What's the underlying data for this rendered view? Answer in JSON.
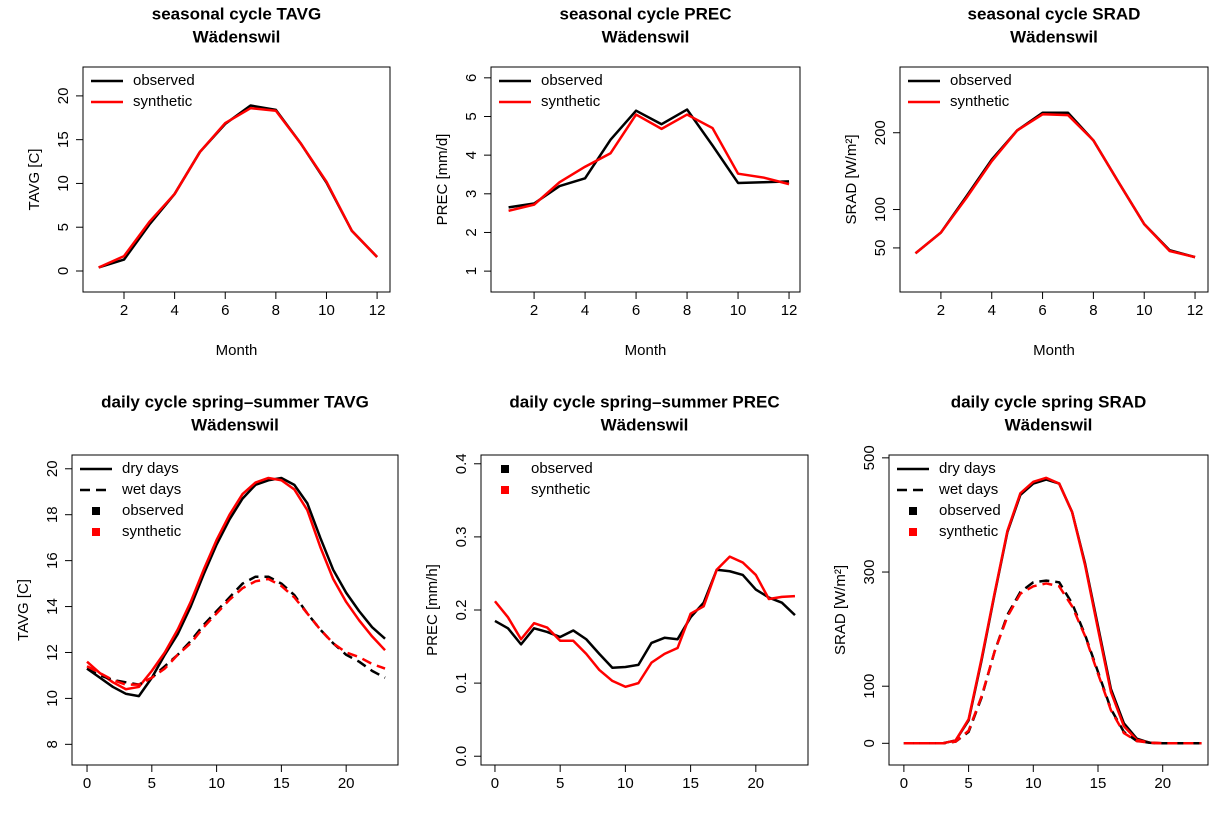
{
  "chart_data": [
    {
      "type": "line",
      "title": "seasonal cycle TAVG",
      "subtitle": "Wädenswil",
      "xlabel": "Month",
      "ylabel": "TAVG [C]",
      "x": [
        1,
        2,
        3,
        4,
        5,
        6,
        7,
        8,
        9,
        10,
        11,
        12
      ],
      "xlim": [
        0.38,
        12.51
      ],
      "xticks": [
        2,
        4,
        6,
        8,
        10,
        12
      ],
      "ylim": [
        -2.4,
        23.3
      ],
      "yticks": [
        0,
        5,
        10,
        15,
        20
      ],
      "series": [
        {
          "color": "#000000",
          "linestyle": "solid",
          "values": [
            0.4,
            1.3,
            5.3,
            8.8,
            13.6,
            16.8,
            18.9,
            18.4,
            14.5,
            10.1,
            4.6,
            1.6
          ]
        },
        {
          "color": "#ff0000",
          "linestyle": "solid",
          "values": [
            0.4,
            1.7,
            5.6,
            8.8,
            13.6,
            16.9,
            18.6,
            18.3,
            14.5,
            10.2,
            4.6,
            1.6
          ]
        }
      ],
      "legend": [
        {
          "label": "observed",
          "symbol": "line",
          "color": "#000000",
          "linestyle": "solid"
        },
        {
          "label": "synthetic",
          "symbol": "line",
          "color": "#ff0000",
          "linestyle": "solid"
        }
      ]
    },
    {
      "type": "line",
      "title": "seasonal cycle PREC",
      "subtitle": "Wädenswil",
      "xlabel": "Month",
      "ylabel": "PREC [mm/d]",
      "x": [
        1,
        2,
        3,
        4,
        5,
        6,
        7,
        8,
        9,
        10,
        11,
        12
      ],
      "xlim": [
        0.31,
        12.43
      ],
      "xticks": [
        2,
        4,
        6,
        8,
        10,
        12
      ],
      "ylim": [
        0.46,
        6.28
      ],
      "yticks": [
        1,
        2,
        3,
        4,
        5,
        6
      ],
      "series": [
        {
          "color": "#000000",
          "linestyle": "solid",
          "values": [
            2.65,
            2.75,
            3.2,
            3.4,
            4.4,
            5.15,
            4.8,
            5.18,
            4.25,
            3.28,
            3.3,
            3.32
          ]
        },
        {
          "color": "#ff0000",
          "linestyle": "solid",
          "values": [
            2.56,
            2.72,
            3.3,
            3.7,
            4.05,
            5.05,
            4.68,
            5.05,
            4.7,
            3.52,
            3.42,
            3.25
          ]
        }
      ],
      "legend": [
        {
          "label": "observed",
          "symbol": "line",
          "color": "#000000",
          "linestyle": "solid"
        },
        {
          "label": "synthetic",
          "symbol": "line",
          "color": "#ff0000",
          "linestyle": "solid"
        }
      ]
    },
    {
      "type": "line",
      "title": "seasonal cycle SRAD",
      "subtitle": "Wädenswil",
      "xlabel": "Month",
      "ylabel": "SRAD [W/m²]",
      "x": [
        1,
        2,
        3,
        4,
        5,
        6,
        7,
        8,
        9,
        10,
        11,
        12
      ],
      "xlim": [
        0.39,
        12.51
      ],
      "xticks": [
        2,
        4,
        6,
        8,
        10,
        12
      ],
      "ylim": [
        -7.4,
        285.6
      ],
      "yticks": [
        50,
        100,
        200
      ],
      "series": [
        {
          "color": "#000000",
          "linestyle": "solid",
          "values": [
            43,
            70,
            117,
            165,
            203,
            226,
            226,
            190,
            135,
            81,
            47,
            38
          ]
        },
        {
          "color": "#ff0000",
          "linestyle": "solid",
          "values": [
            43,
            70,
            115,
            163,
            203,
            224,
            223,
            190,
            135,
            81,
            46,
            38
          ]
        }
      ],
      "legend": [
        {
          "label": "observed",
          "symbol": "line",
          "color": "#000000",
          "linestyle": "solid"
        },
        {
          "label": "synthetic",
          "symbol": "line",
          "color": "#ff0000",
          "linestyle": "solid"
        }
      ]
    },
    {
      "type": "line",
      "title": "daily cycle spring–summer TAVG",
      "subtitle": "Wädenswil",
      "xlabel": "Time",
      "ylabel": "TAVG [C]",
      "x": [
        0,
        1,
        2,
        3,
        4,
        5,
        6,
        7,
        8,
        9,
        10,
        11,
        12,
        13,
        14,
        15,
        16,
        17,
        18,
        19,
        20,
        21,
        22,
        23
      ],
      "xlim": [
        -1.16,
        24.0
      ],
      "xticks": [
        0,
        5,
        10,
        15,
        20
      ],
      "ylim": [
        7.1,
        20.6
      ],
      "yticks": [
        8,
        10,
        12,
        14,
        16,
        18,
        20
      ],
      "series": [
        {
          "color": "#000000",
          "linestyle": "solid",
          "values": [
            11.3,
            10.9,
            10.5,
            10.2,
            10.1,
            10.9,
            11.9,
            12.8,
            14.0,
            15.4,
            16.7,
            17.8,
            18.7,
            19.3,
            19.5,
            19.6,
            19.3,
            18.5,
            17.0,
            15.6,
            14.6,
            13.8,
            13.1,
            12.6
          ]
        },
        {
          "color": "#ff0000",
          "linestyle": "solid",
          "values": [
            11.6,
            11.1,
            10.7,
            10.4,
            10.5,
            11.2,
            12.0,
            13.0,
            14.2,
            15.6,
            16.9,
            18.0,
            18.9,
            19.4,
            19.6,
            19.5,
            19.1,
            18.2,
            16.6,
            15.2,
            14.2,
            13.4,
            12.7,
            12.1
          ]
        },
        {
          "color": "#000000",
          "linestyle": "dashed",
          "values": [
            11.3,
            11.0,
            10.8,
            10.7,
            10.6,
            10.9,
            11.4,
            11.9,
            12.5,
            13.2,
            13.8,
            14.4,
            15.0,
            15.3,
            15.3,
            15.0,
            14.5,
            13.7,
            13.0,
            12.4,
            11.9,
            11.6,
            11.2,
            10.9
          ]
        },
        {
          "color": "#ff0000",
          "linestyle": "dashed",
          "values": [
            11.4,
            11.1,
            10.8,
            10.6,
            10.6,
            10.9,
            11.3,
            11.9,
            12.4,
            13.1,
            13.7,
            14.3,
            14.8,
            15.1,
            15.2,
            14.9,
            14.4,
            13.7,
            13.0,
            12.4,
            12.0,
            11.8,
            11.5,
            11.3
          ]
        }
      ],
      "legend": [
        {
          "label": "dry days",
          "symbol": "line",
          "color": "#000000",
          "linestyle": "solid"
        },
        {
          "label": "wet days",
          "symbol": "line",
          "color": "#000000",
          "linestyle": "dashed"
        },
        {
          "label": "observed",
          "symbol": "square",
          "color": "#000000"
        },
        {
          "label": "synthetic",
          "symbol": "square",
          "color": "#ff0000"
        }
      ]
    },
    {
      "type": "line",
      "title": "daily cycle spring–summer PREC",
      "subtitle": "Wädenswil",
      "xlabel": "Time",
      "ylabel": "PREC [mm/h]",
      "x": [
        0,
        1,
        2,
        3,
        4,
        5,
        6,
        7,
        8,
        9,
        10,
        11,
        12,
        13,
        14,
        15,
        16,
        17,
        18,
        19,
        20,
        21,
        22,
        23
      ],
      "xlim": [
        -1.07,
        24.0
      ],
      "xticks": [
        0,
        5,
        10,
        15,
        20
      ],
      "ylim": [
        -0.012,
        0.412
      ],
      "yticks": [
        {
          "value": 0,
          "label": "0.0"
        },
        0.1,
        0.2,
        0.3,
        0.4
      ],
      "series": [
        {
          "color": "#000000",
          "linestyle": "solid",
          "values": [
            0.185,
            0.175,
            0.153,
            0.175,
            0.17,
            0.163,
            0.172,
            0.16,
            0.14,
            0.121,
            0.122,
            0.125,
            0.155,
            0.162,
            0.16,
            0.19,
            0.21,
            0.255,
            0.253,
            0.248,
            0.228,
            0.217,
            0.21,
            0.193
          ]
        },
        {
          "color": "#ff0000",
          "linestyle": "solid",
          "values": [
            0.212,
            0.19,
            0.16,
            0.182,
            0.176,
            0.158,
            0.158,
            0.14,
            0.118,
            0.103,
            0.095,
            0.1,
            0.128,
            0.14,
            0.148,
            0.195,
            0.205,
            0.255,
            0.273,
            0.265,
            0.248,
            0.215,
            0.218,
            0.219
          ]
        }
      ],
      "legend": [
        {
          "label": "observed",
          "symbol": "square",
          "color": "#000000"
        },
        {
          "label": "synthetic",
          "symbol": "square",
          "color": "#ff0000"
        }
      ]
    },
    {
      "type": "line",
      "title": "daily cycle spring SRAD",
      "subtitle": "Wädenswil",
      "xlabel": "Time",
      "ylabel": "SRAD [W/m²]",
      "x": [
        0,
        1,
        2,
        3,
        4,
        5,
        6,
        7,
        8,
        9,
        10,
        11,
        12,
        13,
        14,
        15,
        16,
        17,
        18,
        19,
        20,
        21,
        22,
        23
      ],
      "xlim": [
        -1.15,
        23.5
      ],
      "xticks": [
        0,
        5,
        10,
        15,
        20
      ],
      "ylim": [
        -38,
        505
      ],
      "yticks": [
        0,
        100,
        300,
        500
      ],
      "series": [
        {
          "color": "#000000",
          "linestyle": "solid",
          "values": [
            0,
            0,
            0,
            0,
            5,
            40,
            145,
            260,
            370,
            435,
            455,
            462,
            455,
            405,
            315,
            205,
            95,
            35,
            8,
            1,
            0,
            0,
            0,
            0
          ]
        },
        {
          "color": "#ff0000",
          "linestyle": "solid",
          "values": [
            0,
            0,
            0,
            0,
            5,
            42,
            148,
            262,
            372,
            438,
            458,
            465,
            455,
            405,
            312,
            200,
            90,
            30,
            6,
            1,
            0,
            0,
            0,
            0
          ]
        },
        {
          "color": "#000000",
          "linestyle": "dashed",
          "values": [
            0,
            0,
            0,
            0,
            3,
            20,
            80,
            160,
            225,
            265,
            282,
            285,
            282,
            245,
            190,
            125,
            60,
            20,
            4,
            1,
            0,
            0,
            0,
            0
          ]
        },
        {
          "color": "#ff0000",
          "linestyle": "dashed",
          "values": [
            0,
            0,
            0,
            0,
            3,
            22,
            82,
            160,
            222,
            262,
            275,
            280,
            275,
            240,
            188,
            122,
            58,
            18,
            4,
            1,
            0,
            0,
            0,
            0
          ]
        }
      ],
      "legend": [
        {
          "label": "dry days",
          "symbol": "line",
          "color": "#000000",
          "linestyle": "solid"
        },
        {
          "label": "wet days",
          "symbol": "line",
          "color": "#000000",
          "linestyle": "dashed"
        },
        {
          "label": "observed",
          "symbol": "square",
          "color": "#000000"
        },
        {
          "label": "synthetic",
          "symbol": "square",
          "color": "#ff0000"
        }
      ]
    }
  ]
}
